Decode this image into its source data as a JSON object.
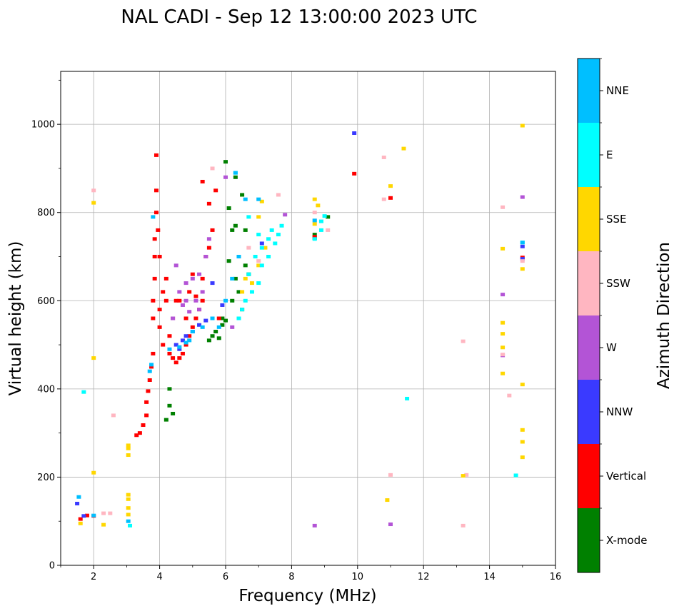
{
  "chart_data": {
    "type": "scatter",
    "title": "NAL CADI - Sep 12 13:00:00 2023 UTC",
    "xlabel": "Frequency (MHz)",
    "ylabel": "Virtual height (km)",
    "xlim": [
      1,
      16
    ],
    "ylim": [
      0,
      1120
    ],
    "x_ticks": [
      2,
      4,
      6,
      8,
      10,
      12,
      14,
      16
    ],
    "y_ticks": [
      0,
      200,
      400,
      600,
      800,
      1000
    ],
    "grid": true,
    "colorbar": {
      "label": "Azimuth Direction",
      "categories": [
        "X-mode",
        "Vertical",
        "NNW",
        "W",
        "SSW",
        "SSE",
        "E",
        "NNE"
      ],
      "colors": [
        "#008000",
        "#ff0000",
        "#3a3aff",
        "#b354d6",
        "#ffb6c1",
        "#ffd700",
        "#00ffff",
        "#00bfff"
      ]
    },
    "series": [
      {
        "name": "X-mode",
        "points": [
          [
            4.3,
            400
          ],
          [
            4.3,
            362
          ],
          [
            4.2,
            330
          ],
          [
            4.4,
            344
          ],
          [
            5.5,
            510
          ],
          [
            5.7,
            530
          ],
          [
            5.9,
            545
          ],
          [
            6.0,
            555
          ],
          [
            6.2,
            600
          ],
          [
            6.3,
            650
          ],
          [
            6.4,
            700
          ],
          [
            6.3,
            770
          ],
          [
            6.5,
            840
          ],
          [
            6.6,
            760
          ],
          [
            6.1,
            690
          ],
          [
            6.4,
            620
          ],
          [
            6.6,
            680
          ],
          [
            6.5,
            580
          ],
          [
            6.2,
            760
          ],
          [
            6.3,
            880
          ],
          [
            6.0,
            915
          ],
          [
            5.6,
            520
          ],
          [
            5.8,
            515
          ],
          [
            8.7,
            750
          ],
          [
            8.7,
            742
          ],
          [
            9.1,
            790
          ],
          [
            6.1,
            810
          ],
          [
            6.7,
            660
          ],
          [
            5.9,
            560
          ]
        ]
      },
      {
        "name": "Vertical",
        "points": [
          [
            1.6,
            105
          ],
          [
            1.8,
            113
          ],
          [
            2.0,
            112
          ],
          [
            3.3,
            295
          ],
          [
            3.4,
            300
          ],
          [
            3.5,
            318
          ],
          [
            3.6,
            340
          ],
          [
            3.6,
            370
          ],
          [
            3.65,
            395
          ],
          [
            3.7,
            420
          ],
          [
            3.75,
            450
          ],
          [
            3.8,
            480
          ],
          [
            3.8,
            560
          ],
          [
            3.8,
            600
          ],
          [
            3.85,
            650
          ],
          [
            3.85,
            700
          ],
          [
            3.85,
            740
          ],
          [
            3.9,
            800
          ],
          [
            3.9,
            850
          ],
          [
            3.9,
            930
          ],
          [
            4.0,
            540
          ],
          [
            4.0,
            580
          ],
          [
            4.1,
            500
          ],
          [
            4.1,
            620
          ],
          [
            4.2,
            600
          ],
          [
            4.3,
            480
          ],
          [
            4.3,
            520
          ],
          [
            4.4,
            470
          ],
          [
            4.5,
            460
          ],
          [
            4.6,
            470
          ],
          [
            4.7,
            480
          ],
          [
            4.8,
            500
          ],
          [
            4.9,
            520
          ],
          [
            4.4,
            560
          ],
          [
            4.6,
            600
          ],
          [
            4.8,
            560
          ],
          [
            5.0,
            540
          ],
          [
            5.1,
            560
          ],
          [
            5.2,
            580
          ],
          [
            5.3,
            600
          ],
          [
            5.3,
            650
          ],
          [
            5.4,
            700
          ],
          [
            5.5,
            720
          ],
          [
            5.6,
            760
          ],
          [
            5.5,
            820
          ],
          [
            5.3,
            870
          ],
          [
            5.0,
            660
          ],
          [
            4.2,
            650
          ],
          [
            4.9,
            620
          ],
          [
            5.7,
            850
          ],
          [
            5.8,
            560
          ],
          [
            8.7,
            745
          ],
          [
            9.9,
            888
          ],
          [
            11.0,
            833
          ],
          [
            15.0,
            698
          ],
          [
            4.0,
            700
          ],
          [
            3.95,
            760
          ],
          [
            4.5,
            600
          ],
          [
            5.1,
            610
          ]
        ]
      },
      {
        "name": "NNW",
        "points": [
          [
            1.5,
            140
          ],
          [
            1.7,
            112
          ],
          [
            4.5,
            500
          ],
          [
            4.7,
            510
          ],
          [
            5.0,
            530
          ],
          [
            5.2,
            545
          ],
          [
            5.4,
            555
          ],
          [
            4.8,
            520
          ],
          [
            5.6,
            640
          ],
          [
            9.9,
            980
          ],
          [
            15.0,
            723
          ],
          [
            15.0,
            695
          ],
          [
            7.1,
            730
          ],
          [
            4.6,
            490
          ],
          [
            5.9,
            590
          ]
        ]
      },
      {
        "name": "W",
        "points": [
          [
            4.4,
            560
          ],
          [
            4.6,
            620
          ],
          [
            4.8,
            640
          ],
          [
            5.0,
            650
          ],
          [
            5.2,
            580
          ],
          [
            5.3,
            620
          ],
          [
            5.4,
            700
          ],
          [
            5.5,
            740
          ],
          [
            4.7,
            590
          ],
          [
            4.5,
            680
          ],
          [
            5.1,
            600
          ],
          [
            4.9,
            575
          ],
          [
            6.2,
            540
          ],
          [
            8.7,
            90
          ],
          [
            11.0,
            93
          ],
          [
            14.4,
            614
          ],
          [
            14.4,
            476
          ],
          [
            15.0,
            835
          ],
          [
            5.2,
            660
          ],
          [
            4.8,
            600
          ],
          [
            6.0,
            880
          ],
          [
            7.8,
            795
          ]
        ]
      },
      {
        "name": "SSW",
        "points": [
          [
            2.3,
            118
          ],
          [
            2.5,
            118
          ],
          [
            2.6,
            340
          ],
          [
            2.0,
            850
          ],
          [
            10.8,
            925
          ],
          [
            10.8,
            830
          ],
          [
            11.0,
            205
          ],
          [
            13.2,
            508
          ],
          [
            13.2,
            90
          ],
          [
            14.4,
            812
          ],
          [
            14.6,
            385
          ],
          [
            7.6,
            840
          ],
          [
            8.7,
            800
          ],
          [
            9.1,
            760
          ],
          [
            7.0,
            690
          ],
          [
            6.7,
            720
          ],
          [
            5.6,
            900
          ],
          [
            8.7,
            782
          ],
          [
            15.0,
            690
          ],
          [
            14.4,
            478
          ],
          [
            13.3,
            205
          ]
        ]
      },
      {
        "name": "SSE",
        "points": [
          [
            1.6,
            95
          ],
          [
            2.0,
            470
          ],
          [
            2.0,
            210
          ],
          [
            2.0,
            822
          ],
          [
            2.3,
            92
          ],
          [
            3.05,
            115
          ],
          [
            3.05,
            130
          ],
          [
            3.05,
            150
          ],
          [
            3.05,
            160
          ],
          [
            3.05,
            250
          ],
          [
            3.05,
            265
          ],
          [
            3.05,
            272
          ],
          [
            6.6,
            650
          ],
          [
            6.8,
            640
          ],
          [
            7.0,
            680
          ],
          [
            7.2,
            720
          ],
          [
            7.0,
            790
          ],
          [
            7.1,
            825
          ],
          [
            11.0,
            860
          ],
          [
            11.4,
            945
          ],
          [
            10.9,
            148
          ],
          [
            14.4,
            550
          ],
          [
            14.4,
            525
          ],
          [
            14.4,
            494
          ],
          [
            14.4,
            435
          ],
          [
            14.4,
            718
          ],
          [
            15.0,
            672
          ],
          [
            15.0,
            410
          ],
          [
            15.0,
            307
          ],
          [
            15.0,
            280
          ],
          [
            15.0,
            245
          ],
          [
            15.0,
            997
          ],
          [
            8.7,
            830
          ],
          [
            8.7,
            774
          ],
          [
            13.2,
            203
          ],
          [
            6.5,
            620
          ],
          [
            8.8,
            816
          ]
        ]
      },
      {
        "name": "E",
        "points": [
          [
            1.7,
            393
          ],
          [
            3.1,
            90
          ],
          [
            6.4,
            560
          ],
          [
            6.5,
            580
          ],
          [
            6.6,
            600
          ],
          [
            6.8,
            620
          ],
          [
            7.0,
            640
          ],
          [
            6.7,
            660
          ],
          [
            6.9,
            700
          ],
          [
            7.1,
            720
          ],
          [
            7.3,
            740
          ],
          [
            7.4,
            760
          ],
          [
            7.5,
            730
          ],
          [
            7.6,
            750
          ],
          [
            7.7,
            770
          ],
          [
            7.3,
            700
          ],
          [
            7.1,
            680
          ],
          [
            8.7,
            740
          ],
          [
            8.9,
            760
          ],
          [
            8.9,
            780
          ],
          [
            9.0,
            792
          ],
          [
            11.5,
            378
          ],
          [
            14.8,
            204
          ],
          [
            15.0,
            732
          ],
          [
            6.3,
            890
          ],
          [
            6.7,
            790
          ],
          [
            7.0,
            750
          ]
        ]
      },
      {
        "name": "NNE",
        "points": [
          [
            1.55,
            155
          ],
          [
            2.0,
            113
          ],
          [
            3.05,
            100
          ],
          [
            3.7,
            440
          ],
          [
            3.75,
            455
          ],
          [
            3.8,
            790
          ],
          [
            4.3,
            490
          ],
          [
            4.6,
            495
          ],
          [
            4.8,
            505
          ],
          [
            5.0,
            530
          ],
          [
            5.3,
            540
          ],
          [
            5.6,
            560
          ],
          [
            6.0,
            600
          ],
          [
            6.2,
            650
          ],
          [
            6.4,
            700
          ],
          [
            6.3,
            890
          ],
          [
            6.6,
            830
          ],
          [
            7.0,
            830
          ],
          [
            8.7,
            782
          ],
          [
            15.0,
            732
          ],
          [
            5.8,
            540
          ],
          [
            4.9,
            510
          ]
        ]
      }
    ]
  }
}
